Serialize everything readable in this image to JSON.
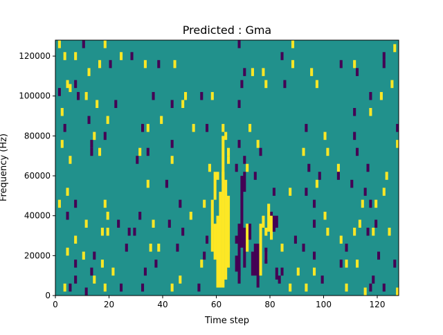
{
  "chart_data": {
    "type": "heatmap",
    "title": "Predicted : Gma",
    "xlabel": "Time step",
    "ylabel": "Frequency (Hz)",
    "xlim": [
      0,
      128
    ],
    "ylim": [
      0,
      128000
    ],
    "xticks": [
      0,
      20,
      40,
      60,
      80,
      100,
      120
    ],
    "xtick_labels": [
      "0",
      "20",
      "40",
      "60",
      "80",
      "100",
      "120"
    ],
    "yticks": [
      0,
      20000,
      40000,
      60000,
      80000,
      100000,
      120000
    ],
    "ytick_labels": [
      "0",
      "20000",
      "40000",
      "60000",
      "80000",
      "100000",
      "120000"
    ],
    "grid": false,
    "colormap": "viridis",
    "colors": {
      "background": "#21918c",
      "high": "#fde725",
      "low": "#440154"
    },
    "values_legend": {
      "low": -1,
      "background": 0,
      "high": 1
    },
    "cells": [
      [
        1,
        126000,
        1
      ],
      [
        10,
        126000,
        -1
      ],
      [
        18,
        126000,
        1
      ],
      [
        68,
        126000,
        -1
      ],
      [
        88,
        126000,
        1
      ],
      [
        126,
        124000,
        1
      ],
      [
        3,
        120000,
        1
      ],
      [
        7,
        120000,
        1
      ],
      [
        24,
        120000,
        1
      ],
      [
        28,
        120000,
        -1
      ],
      [
        84,
        120000,
        -1
      ],
      [
        122,
        120000,
        -1
      ],
      [
        16,
        116000,
        1
      ],
      [
        20,
        116000,
        -1
      ],
      [
        33,
        116000,
        1
      ],
      [
        38,
        116000,
        -1
      ],
      [
        44,
        116000,
        1
      ],
      [
        88,
        116000,
        1
      ],
      [
        106,
        116000,
        -1
      ],
      [
        111,
        116000,
        1
      ],
      [
        122,
        116000,
        -1
      ],
      [
        12,
        112000,
        1
      ],
      [
        70,
        112000,
        -1
      ],
      [
        73,
        112000,
        1
      ],
      [
        77,
        112000,
        1
      ],
      [
        95,
        112000,
        1
      ],
      [
        112,
        112000,
        -1
      ],
      [
        4,
        106000,
        1
      ],
      [
        7,
        106000,
        -1
      ],
      [
        69,
        106000,
        -1
      ],
      [
        78,
        106000,
        1
      ],
      [
        85,
        106000,
        -1
      ],
      [
        97,
        106000,
        1
      ],
      [
        125,
        106000,
        1
      ],
      [
        5,
        104000,
        1
      ],
      [
        1,
        102000,
        -1
      ],
      [
        8,
        100000,
        -1
      ],
      [
        11,
        100000,
        1
      ],
      [
        36,
        100000,
        -1
      ],
      [
        48,
        100000,
        1
      ],
      [
        54,
        100000,
        -1
      ],
      [
        58,
        100000,
        1
      ],
      [
        117,
        100000,
        -1
      ],
      [
        121,
        100000,
        1
      ],
      [
        15,
        96000,
        1
      ],
      [
        22,
        96000,
        -1
      ],
      [
        43,
        96000,
        -1
      ],
      [
        47,
        96000,
        1
      ],
      [
        68,
        96000,
        -1
      ],
      [
        2,
        92000,
        1
      ],
      [
        111,
        92000,
        -1
      ],
      [
        117,
        92000,
        1
      ],
      [
        12,
        88000,
        -1
      ],
      [
        19,
        88000,
        1
      ],
      [
        39,
        88000,
        1
      ],
      [
        3,
        84000,
        -1
      ],
      [
        32,
        84000,
        -1
      ],
      [
        34,
        84000,
        1
      ],
      [
        51,
        84000,
        1
      ],
      [
        56,
        84000,
        -1
      ],
      [
        62,
        84000,
        1
      ],
      [
        72,
        84000,
        1
      ],
      [
        93,
        84000,
        -1
      ],
      [
        127,
        84000,
        -1
      ],
      [
        14,
        80000,
        1
      ],
      [
        18,
        80000,
        -1
      ],
      [
        63,
        80000,
        1
      ],
      [
        100,
        80000,
        1
      ],
      [
        111,
        80000,
        -1
      ],
      [
        2,
        76000,
        1
      ],
      [
        13,
        76000,
        -1
      ],
      [
        43,
        76000,
        -1
      ],
      [
        68,
        76000,
        -1
      ],
      [
        75,
        76000,
        1
      ],
      [
        127,
        76000,
        1
      ],
      [
        13,
        72000,
        -1
      ],
      [
        16,
        72000,
        1
      ],
      [
        31,
        72000,
        1
      ],
      [
        34,
        72000,
        -1
      ],
      [
        64,
        72000,
        1
      ],
      [
        76,
        72000,
        -1
      ],
      [
        92,
        72000,
        1
      ],
      [
        101,
        72000,
        1
      ],
      [
        112,
        72000,
        -1
      ],
      [
        5,
        68000,
        1
      ],
      [
        30,
        68000,
        -1
      ],
      [
        43,
        68000,
        1
      ],
      [
        70,
        68000,
        -1
      ],
      [
        64,
        68000,
        1
      ],
      [
        57,
        64000,
        1
      ],
      [
        67,
        64000,
        -1
      ],
      [
        71,
        64000,
        1
      ],
      [
        94,
        64000,
        -1
      ],
      [
        105,
        64000,
        1
      ],
      [
        116,
        64000,
        -1
      ],
      [
        60,
        60000,
        1
      ],
      [
        62,
        60000,
        1
      ],
      [
        74,
        60000,
        -1
      ],
      [
        98,
        60000,
        -1
      ],
      [
        105,
        60000,
        -1
      ],
      [
        123,
        60000,
        1
      ],
      [
        34,
        56000,
        1
      ],
      [
        41,
        56000,
        -1
      ],
      [
        97,
        56000,
        1
      ],
      [
        110,
        56000,
        -1
      ],
      [
        4,
        52000,
        1
      ],
      [
        81,
        52000,
        -1
      ],
      [
        87,
        52000,
        1
      ],
      [
        93,
        52000,
        -1
      ],
      [
        115,
        52000,
        -1
      ],
      [
        122,
        52000,
        1
      ],
      [
        1,
        46000,
        1
      ],
      [
        7,
        46000,
        -1
      ],
      [
        18,
        46000,
        1
      ],
      [
        46,
        46000,
        -1
      ],
      [
        55,
        46000,
        1
      ],
      [
        96,
        46000,
        -1
      ],
      [
        114,
        46000,
        1
      ],
      [
        117,
        46000,
        -1
      ],
      [
        119,
        46000,
        1
      ],
      [
        4,
        40000,
        -1
      ],
      [
        19,
        40000,
        1
      ],
      [
        31,
        40000,
        -1
      ],
      [
        50,
        40000,
        1
      ],
      [
        80,
        40000,
        -1
      ],
      [
        100,
        40000,
        1
      ],
      [
        11,
        36000,
        1
      ],
      [
        23,
        36000,
        -1
      ],
      [
        36,
        36000,
        1
      ],
      [
        42,
        36000,
        -1
      ],
      [
        96,
        36000,
        -1
      ],
      [
        113,
        36000,
        1
      ],
      [
        119,
        36000,
        -1
      ],
      [
        17,
        32000,
        1
      ],
      [
        19,
        32000,
        1
      ],
      [
        27,
        32000,
        -1
      ],
      [
        29,
        32000,
        -1
      ],
      [
        47,
        32000,
        -1
      ],
      [
        78,
        32000,
        1
      ],
      [
        101,
        32000,
        1
      ],
      [
        111,
        32000,
        1
      ],
      [
        116,
        32000,
        -1
      ],
      [
        118,
        32000,
        1
      ],
      [
        124,
        32000,
        1
      ],
      [
        7,
        28000,
        1
      ],
      [
        56,
        28000,
        -1
      ],
      [
        67,
        28000,
        -1
      ],
      [
        89,
        28000,
        -1
      ],
      [
        106,
        28000,
        1
      ],
      [
        26,
        24000,
        -1
      ],
      [
        35,
        24000,
        1
      ],
      [
        38,
        24000,
        1
      ],
      [
        45,
        24000,
        -1
      ],
      [
        64,
        24000,
        1
      ],
      [
        84,
        24000,
        1
      ],
      [
        92,
        24000,
        -1
      ],
      [
        108,
        24000,
        -1
      ],
      [
        4,
        22000,
        1
      ],
      [
        10,
        20000,
        1
      ],
      [
        14,
        20000,
        -1
      ],
      [
        55,
        20000,
        -1
      ],
      [
        78,
        20000,
        1
      ],
      [
        96,
        20000,
        -1
      ],
      [
        120,
        20000,
        -1
      ],
      [
        7,
        16000,
        -1
      ],
      [
        17,
        16000,
        1
      ],
      [
        37,
        16000,
        -1
      ],
      [
        54,
        16000,
        1
      ],
      [
        106,
        16000,
        -1
      ],
      [
        112,
        16000,
        1
      ],
      [
        108,
        16000,
        1
      ],
      [
        126,
        16000,
        -1
      ],
      [
        13,
        12000,
        -1
      ],
      [
        21,
        12000,
        1
      ],
      [
        33,
        12000,
        -1
      ],
      [
        68,
        12000,
        -1
      ],
      [
        84,
        12000,
        -1
      ],
      [
        90,
        12000,
        1
      ],
      [
        96,
        12000,
        1
      ],
      [
        7,
        8000,
        -1
      ],
      [
        14,
        8000,
        1
      ],
      [
        46,
        8000,
        1
      ],
      [
        83,
        8000,
        -1
      ],
      [
        99,
        8000,
        -1
      ],
      [
        118,
        8000,
        -1
      ],
      [
        3,
        4000,
        1
      ],
      [
        18,
        4000,
        1
      ],
      [
        24,
        4000,
        -1
      ],
      [
        32,
        4000,
        -1
      ],
      [
        53,
        4000,
        -1
      ],
      [
        87,
        4000,
        1
      ],
      [
        108,
        4000,
        1
      ],
      [
        117,
        4000,
        -1
      ],
      [
        11,
        2000,
        -1
      ],
      [
        5,
        4000,
        -1
      ],
      [
        43,
        4000,
        1
      ],
      [
        93,
        4000,
        1
      ],
      [
        122,
        4000,
        -1
      ],
      [
        127,
        2000,
        1
      ],
      [
        115,
        2000,
        1
      ]
    ],
    "vertical_runs": [
      [
        60,
        4000,
        40000,
        1
      ],
      [
        61,
        4000,
        52000,
        1
      ],
      [
        62,
        4000,
        80000,
        1
      ],
      [
        63,
        8000,
        58000,
        1
      ],
      [
        59,
        18000,
        36000,
        1
      ],
      [
        58,
        22000,
        48000,
        1
      ],
      [
        64,
        14000,
        50000,
        1
      ],
      [
        59,
        48000,
        62000,
        1
      ],
      [
        68,
        6000,
        36000,
        -1
      ],
      [
        69,
        24000,
        60000,
        -1
      ],
      [
        67,
        12000,
        20000,
        -1
      ],
      [
        70,
        14000,
        34000,
        -1
      ],
      [
        70,
        52000,
        62000,
        -1
      ],
      [
        74,
        10000,
        26000,
        -1
      ],
      [
        75,
        4000,
        26000,
        -1
      ],
      [
        73,
        10000,
        22000,
        -1
      ],
      [
        76,
        10000,
        36000,
        1
      ],
      [
        77,
        34000,
        40000,
        1
      ],
      [
        79,
        32000,
        46000,
        1
      ],
      [
        80,
        28000,
        40000,
        1
      ],
      [
        71,
        22000,
        36000,
        1
      ],
      [
        72,
        28000,
        36000,
        -1
      ],
      [
        81,
        32000,
        40000,
        -1
      ],
      [
        82,
        34000,
        40000,
        -1
      ],
      [
        78,
        16000,
        24000,
        -1
      ],
      [
        82,
        8000,
        14000,
        -1
      ]
    ]
  }
}
